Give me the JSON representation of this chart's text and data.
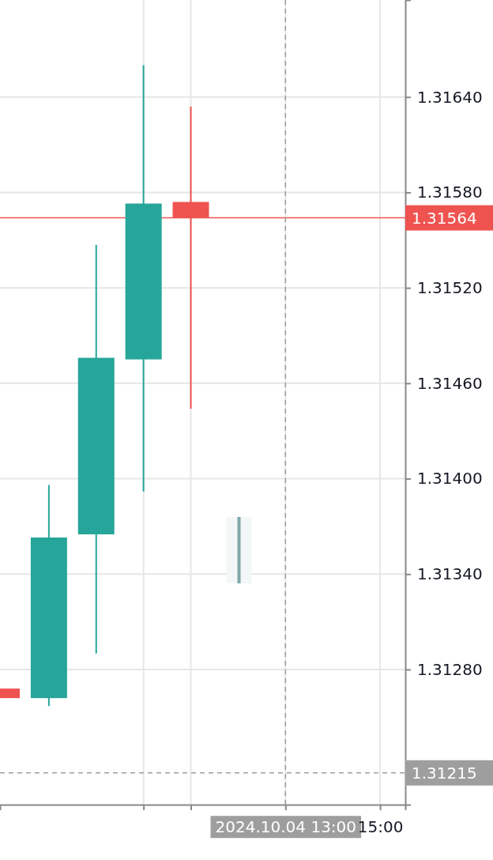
{
  "chart_data": {
    "type": "candlestick",
    "x": [
      "2024-10-04T07:00",
      "2024-10-04T08:00",
      "2024-10-04T09:00",
      "2024-10-04T10:00",
      "2024-10-04T11:00"
    ],
    "ohlc": [
      [
        1.31268,
        1.31268,
        1.31262,
        1.31262
      ],
      [
        1.31262,
        1.31396,
        1.31257,
        1.31363
      ],
      [
        1.31365,
        1.31547,
        1.3129,
        1.31476
      ],
      [
        1.31475,
        1.3166,
        1.31392,
        1.31573
      ],
      [
        1.31574,
        1.31634,
        1.31444,
        1.31564
      ]
    ],
    "colors": [
      "#ef5350",
      "#26a69a",
      "#26a69a",
      "#26a69a",
      "#ef5350"
    ],
    "xlim": [
      "2024-10-04T06:58",
      "2024-10-04T15:32"
    ],
    "xticks": [
      {
        "value": "2024-10-04T10:00",
        "label": null
      },
      {
        "value": "2024-10-04T11:00",
        "label": null
      },
      {
        "value": "2024-10-04T13:00",
        "label": "2024.10.04 13:00"
      },
      {
        "value": "2024-10-04T15:00",
        "label": "15:00"
      }
    ],
    "ylim": [
      1.31195,
      1.31701
    ],
    "yticks": [
      {
        "value": 1.3128,
        "label": "1.31280"
      },
      {
        "value": 1.3134,
        "label": "1.31340"
      },
      {
        "value": 1.314,
        "label": "1.31400"
      },
      {
        "value": 1.3146,
        "label": "1.31460"
      },
      {
        "value": 1.3152,
        "label": "1.31520"
      },
      {
        "value": 1.3158,
        "label": "1.31580"
      },
      {
        "value": 1.3164,
        "label": "1.31640"
      }
    ],
    "grid": true,
    "ref_lines": [
      {
        "axis": "y",
        "value": 1.31564,
        "label": "1.31564",
        "color": "#ef5350",
        "line_style": "solid"
      },
      {
        "axis": "y",
        "value": 1.31215,
        "label": "1.31215",
        "color": "#9e9e9e",
        "line_style": "dashed"
      },
      {
        "axis": "x",
        "value": "2024-10-04T13:00",
        "label": null,
        "color": "#9e9e9e",
        "line_style": "dashed"
      }
    ]
  }
}
